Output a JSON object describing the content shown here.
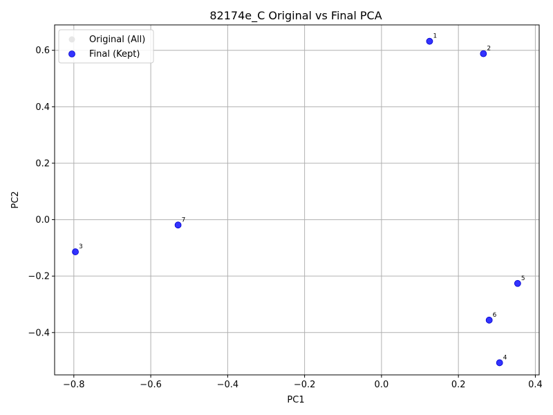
{
  "chart_data": {
    "type": "scatter",
    "title": "82174e_C Original vs Final PCA",
    "xlabel": "PC1",
    "ylabel": "PC2",
    "xlim": [
      -0.85,
      0.41
    ],
    "ylim": [
      -0.55,
      0.69
    ],
    "xticks": [
      -0.8,
      -0.6,
      -0.4,
      -0.2,
      0.0,
      0.2,
      0.4
    ],
    "xtick_labels": [
      "−0.8",
      "−0.6",
      "−0.4",
      "−0.2",
      "0.0",
      "0.2",
      "0.4"
    ],
    "yticks": [
      -0.4,
      -0.2,
      0.0,
      0.2,
      0.4,
      0.6
    ],
    "ytick_labels": [
      "−0.4",
      "−0.2",
      "0.0",
      "0.2",
      "0.4",
      "0.6"
    ],
    "grid": true,
    "legend_position": "top-left",
    "series": [
      {
        "name": "Original (All)",
        "color": "#e6e6e6",
        "points": []
      },
      {
        "name": "Final (Kept)",
        "color": "#0000ff",
        "points": [
          {
            "label": "1",
            "x": 0.125,
            "y": 0.632
          },
          {
            "label": "2",
            "x": 0.265,
            "y": 0.588
          },
          {
            "label": "3",
            "x": -0.796,
            "y": -0.114
          },
          {
            "label": "4",
            "x": 0.307,
            "y": -0.507
          },
          {
            "label": "5",
            "x": 0.354,
            "y": -0.226
          },
          {
            "label": "6",
            "x": 0.28,
            "y": -0.356
          },
          {
            "label": "7",
            "x": -0.529,
            "y": -0.019
          }
        ]
      }
    ]
  }
}
